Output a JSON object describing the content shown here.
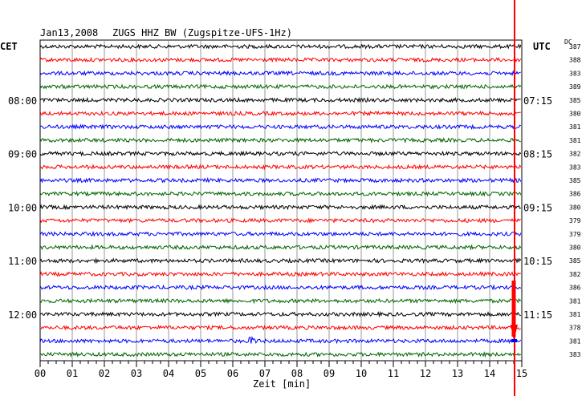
{
  "header": {
    "date": "Jan13,2008",
    "station": "ZUGS HHZ BW (Zugspitze-UFS-1Hz)",
    "left_tz": "CET",
    "right_tz": "UTC",
    "dc_label": "DC"
  },
  "chart_data": {
    "type": "line",
    "title": "ZUGS HHZ BW (Zugspitze-UFS-1Hz)",
    "xlabel": "Zeit [min]",
    "ylabel": "",
    "xlim": [
      0,
      15
    ],
    "x_ticks": [
      "00",
      "01",
      "02",
      "03",
      "04",
      "05",
      "06",
      "07",
      "08",
      "09",
      "10",
      "11",
      "12",
      "13",
      "14",
      "15"
    ],
    "grid": true,
    "trace_count": 24,
    "trace_colors": [
      "#000000",
      "#ff0000",
      "#0000ff",
      "#006400"
    ],
    "cet_labels": [
      {
        "row": 4,
        "text": "08:00"
      },
      {
        "row": 8,
        "text": "09:00"
      },
      {
        "row": 12,
        "text": "10:00"
      },
      {
        "row": 16,
        "text": "11:00"
      },
      {
        "row": 20,
        "text": "12:00"
      }
    ],
    "utc_labels": [
      {
        "row": 4,
        "text": "07:15"
      },
      {
        "row": 8,
        "text": "08:15"
      },
      {
        "row": 12,
        "text": "09:15"
      },
      {
        "row": 16,
        "text": "10:15"
      },
      {
        "row": 20,
        "text": "11:15"
      }
    ],
    "dc_offsets": [
      "387",
      "388",
      "383",
      "389",
      "385",
      "380",
      "381",
      "381",
      "382",
      "383",
      "385",
      "386",
      "380",
      "379",
      "379",
      "380",
      "385",
      "382",
      "386",
      "381",
      "381",
      "378",
      "381",
      "383"
    ],
    "event_minute": 14.7
  }
}
